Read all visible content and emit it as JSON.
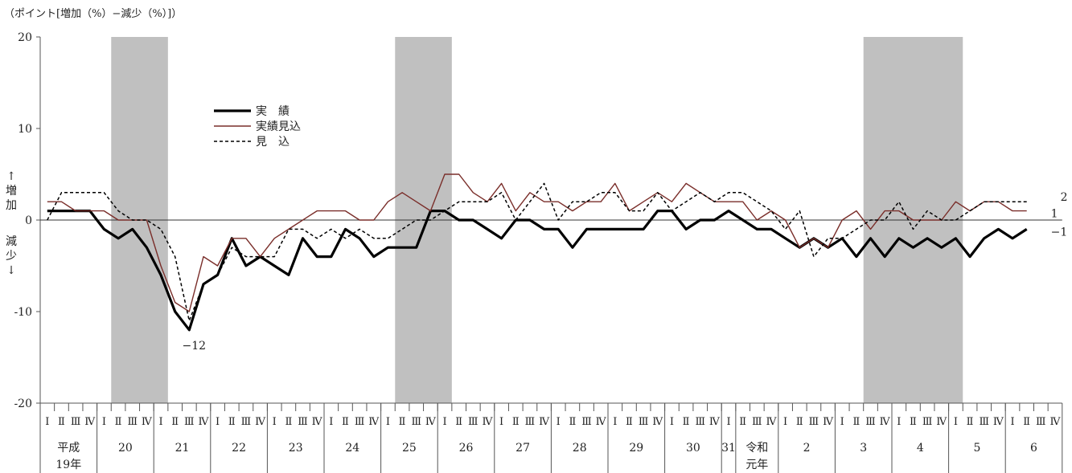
{
  "unit_label": "（ポイント[増加（%）−減少（%）]）",
  "side_label_up": [
    "↑",
    "増",
    "加"
  ],
  "side_label_down": [
    "減",
    "少",
    "↓"
  ],
  "chart_data": {
    "type": "line",
    "ylim": [
      -20,
      20
    ],
    "y_ticks": [
      20,
      10,
      0,
      -10,
      -20
    ],
    "grid": false,
    "legend_position": "upper-left inside plot",
    "quarter_labels": [
      "Ⅰ",
      "Ⅱ",
      "Ⅲ",
      "Ⅳ"
    ],
    "year_labels": [
      {
        "label": "平成",
        "label2": "19年",
        "quarters": 4
      },
      {
        "label": "20",
        "quarters": 4
      },
      {
        "label": "21",
        "quarters": 4
      },
      {
        "label": "22",
        "quarters": 4
      },
      {
        "label": "23",
        "quarters": 4
      },
      {
        "label": "24",
        "quarters": 4
      },
      {
        "label": "25",
        "quarters": 4
      },
      {
        "label": "26",
        "quarters": 4
      },
      {
        "label": "27",
        "quarters": 4
      },
      {
        "label": "28",
        "quarters": 4
      },
      {
        "label": "29",
        "quarters": 4
      },
      {
        "label": "30",
        "quarters": 4
      },
      {
        "label": "31",
        "quarters": 1
      },
      {
        "label": "令和",
        "label2": "元年",
        "quarters": 3
      },
      {
        "label": "2",
        "quarters": 4
      },
      {
        "label": "3",
        "quarters": 4
      },
      {
        "label": "4",
        "quarters": 4
      },
      {
        "label": "5",
        "quarters": 4
      },
      {
        "label": "6",
        "quarters": 4
      }
    ],
    "shaded_periods": [
      [
        5,
        9
      ],
      [
        25,
        29
      ],
      [
        58,
        65
      ]
    ],
    "series": [
      {
        "name": "実　績",
        "style": "thick-solid",
        "color": "#000000",
        "values": [
          1,
          1,
          1,
          1,
          -1,
          -2,
          -1,
          -3,
          -6,
          -10,
          -12,
          -7,
          -6,
          -2,
          -5,
          -4,
          -5,
          -6,
          -2,
          -4,
          -4,
          -1,
          -2,
          -4,
          -3,
          -3,
          -3,
          1,
          1,
          0,
          0,
          -1,
          -2,
          0,
          0,
          -1,
          -1,
          -3,
          -1,
          -1,
          -1,
          -1,
          -1,
          1,
          1,
          -1,
          0,
          0,
          1,
          0,
          -1,
          -1,
          -2,
          -3,
          -2,
          -3,
          -2,
          -4,
          -2,
          -4,
          -2,
          -3,
          -2,
          -3,
          -2,
          -4,
          -2,
          -1,
          -2,
          -1
        ]
      },
      {
        "name": "実績見込",
        "style": "thin-solid",
        "color": "#7a2e2a",
        "values": [
          2,
          2,
          1,
          1,
          1,
          0,
          0,
          0,
          -5,
          -9,
          -10,
          -4,
          -5,
          -2,
          -2,
          -4,
          -2,
          -1,
          0,
          1,
          1,
          1,
          0,
          0,
          2,
          3,
          2,
          1,
          5,
          5,
          3,
          2,
          4,
          1,
          3,
          2,
          2,
          1,
          2,
          2,
          4,
          1,
          2,
          3,
          2,
          4,
          3,
          2,
          2,
          2,
          0,
          1,
          0,
          -3,
          -2,
          -3,
          0,
          1,
          -1,
          1,
          1,
          0,
          0,
          0,
          2,
          1,
          2,
          2,
          1,
          1
        ]
      },
      {
        "name": "見　込",
        "style": "dashed",
        "color": "#000000",
        "values": [
          0,
          3,
          3,
          3,
          3,
          1,
          0,
          0,
          -1,
          -4,
          -11,
          -7,
          -6,
          -3,
          -4,
          -4,
          -4,
          -1,
          -1,
          -2,
          -1,
          -2,
          -1,
          -2,
          -2,
          -1,
          0,
          0,
          1,
          2,
          2,
          2,
          3,
          0,
          2,
          4,
          0,
          2,
          2,
          3,
          3,
          1,
          1,
          3,
          1,
          2,
          3,
          2,
          3,
          3,
          2,
          1,
          -1,
          1,
          -4,
          -2,
          -2,
          -1,
          0,
          0,
          2,
          -1,
          1,
          0,
          0,
          1,
          2,
          2,
          2,
          2
        ]
      }
    ],
    "annotations": [
      {
        "index": 10,
        "series": 0,
        "text": "−12",
        "position": "below"
      },
      {
        "index": 69,
        "series": 0,
        "text": "−1",
        "position": "right"
      },
      {
        "index": 69,
        "series": 1,
        "text": "1",
        "position": "right"
      },
      {
        "index": 69,
        "series": 2,
        "text": "2",
        "position": "right-far"
      }
    ]
  }
}
